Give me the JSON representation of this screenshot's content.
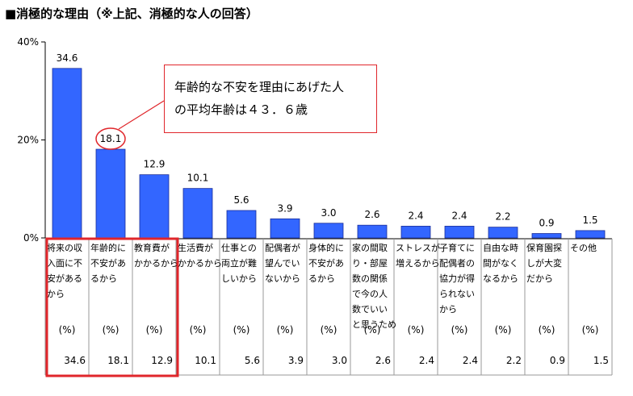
{
  "title": "■消極的な理由（※上記、消極的な人の回答）",
  "callout": {
    "line1": "年齢的な不安を理由にあげた人",
    "line2": "の平均年齢は４３．６歳"
  },
  "colors": {
    "bar": "#3366ff",
    "highlight": "#e0262b"
  },
  "unit_label": "(%)",
  "chart_data": {
    "type": "bar",
    "title": "",
    "xlabel": "",
    "ylabel": "",
    "ylim": [
      0,
      40
    ],
    "yticks": [
      "0%",
      "20%",
      "40%"
    ],
    "grid": false,
    "categories": [
      "将来の収入面に不安があるから",
      "年齢的に不安があるから",
      "教育費がかかるから",
      "生活費がかかるから",
      "仕事との両立が難しいから",
      "配偶者が望んでいないから",
      "身体的に不安があるから",
      "家の間取り・部屋数の関係で今の人数でいいと思うため",
      "ストレスが増えるから",
      "子育てに配偶者の協力が得られないから",
      "自由な時間がなくなるから",
      "保育園探しが大変だから",
      "その他"
    ],
    "category_lines": [
      [
        "将来の収",
        "入面に不",
        "安がある",
        "から"
      ],
      [
        "年齢的に",
        "不安があ",
        "るから"
      ],
      [
        "教育費が",
        "かかるから"
      ],
      [
        "生活費が",
        "かかるから"
      ],
      [
        "仕事との",
        "両立が難",
        "しいから"
      ],
      [
        "配偶者が",
        "望んでい",
        "ないから"
      ],
      [
        "身体的に",
        "不安があ",
        "るから"
      ],
      [
        "家の間取",
        "り・部屋",
        "数の関係",
        "で今の人",
        "数でいい",
        "と思うため"
      ],
      [
        "ストレスが",
        "増えるから"
      ],
      [
        "子育てに",
        "配偶者の",
        "協力が得",
        "られない",
        "から"
      ],
      [
        "自由な時",
        "間がなく",
        "なるから"
      ],
      [
        "保育園探",
        "しが大変",
        "だから"
      ],
      [
        "その他"
      ]
    ],
    "values": [
      34.6,
      18.1,
      12.9,
      10.1,
      5.6,
      3.9,
      3.0,
      2.6,
      2.4,
      2.4,
      2.2,
      0.9,
      1.5
    ],
    "value_labels": [
      "34.6",
      "18.1",
      "12.9",
      "10.1",
      "5.6",
      "3.9",
      "3.0",
      "2.6",
      "2.4",
      "2.4",
      "2.2",
      "0.9",
      "1.5"
    ],
    "highlighted_value": "18.1",
    "highlighted_categories": [
      0,
      1,
      2
    ]
  }
}
